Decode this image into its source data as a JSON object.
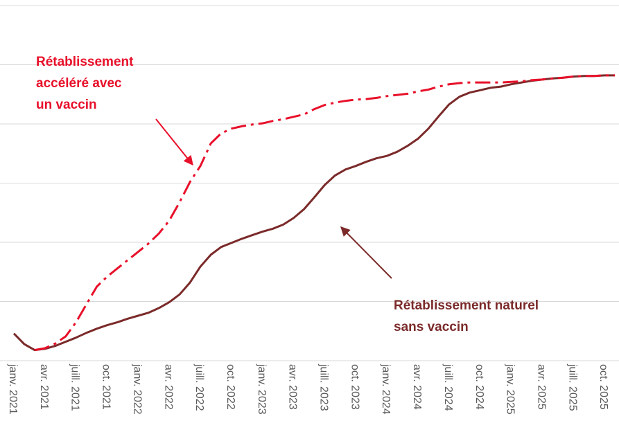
{
  "chart_data": {
    "type": "line",
    "categories": [
      "janv. 2021",
      null,
      null,
      "avr. 2021",
      null,
      null,
      "juill. 2021",
      null,
      null,
      "oct. 2021",
      null,
      null,
      "janv. 2022",
      null,
      null,
      "avr. 2022",
      null,
      null,
      "juill. 2022",
      null,
      null,
      "oct. 2022",
      null,
      null,
      "janv. 2023",
      null,
      null,
      "avr. 2023",
      null,
      null,
      "juill. 2023",
      null,
      null,
      "oct. 2023",
      null,
      null,
      "janv. 2024",
      null,
      null,
      "avr. 2024",
      null,
      null,
      "juill. 2024",
      null,
      null,
      "oct. 2024",
      null,
      null,
      "janv. 2025",
      null,
      null,
      "avr. 2025",
      null,
      null,
      "juill. 2025",
      null,
      null,
      "oct. 2025",
      null
    ],
    "series": [
      {
        "name": "Rétablissement naturel sans vaccin",
        "color": "#7b2a2a",
        "dash": "solid",
        "values": [
          0.46,
          0.28,
          0.18,
          0.2,
          0.25,
          0.32,
          0.39,
          0.47,
          0.54,
          0.6,
          0.65,
          0.71,
          0.76,
          0.81,
          0.89,
          0.99,
          1.12,
          1.32,
          1.59,
          1.79,
          1.92,
          1.99,
          2.06,
          2.12,
          2.18,
          2.23,
          2.3,
          2.41,
          2.56,
          2.76,
          2.97,
          3.13,
          3.23,
          3.29,
          3.36,
          3.42,
          3.46,
          3.53,
          3.63,
          3.75,
          3.92,
          4.13,
          4.33,
          4.46,
          4.53,
          4.57,
          4.61,
          4.63,
          4.67,
          4.7,
          4.73,
          4.75,
          4.77,
          4.78,
          4.8,
          4.81,
          4.81,
          4.82,
          4.82
        ]
      },
      {
        "name": "Rétablissement accéléré avec un vaccin",
        "color": "#e8102a",
        "dash": "dashdot",
        "values": [
          null,
          null,
          0.18,
          0.21,
          0.29,
          0.41,
          0.65,
          0.95,
          1.25,
          1.42,
          1.56,
          1.7,
          1.84,
          1.98,
          2.15,
          2.37,
          2.68,
          3.02,
          3.29,
          3.67,
          3.84,
          3.92,
          3.96,
          3.99,
          4.01,
          4.05,
          4.08,
          4.12,
          4.16,
          4.25,
          4.32,
          4.36,
          4.39,
          4.41,
          4.42,
          4.44,
          4.47,
          4.49,
          4.51,
          4.55,
          4.58,
          4.63,
          4.67,
          4.69,
          4.7,
          4.7,
          4.7,
          4.7,
          4.71,
          4.72,
          4.74,
          4.75,
          4.77,
          4.78,
          4.8,
          4.81,
          4.81,
          4.82,
          4.82
        ]
      }
    ],
    "annotations": [
      {
        "lines": [
          "Rétablissement",
          "accéléré avec",
          "un vaccin"
        ],
        "color": "#e8102a"
      },
      {
        "lines": [
          "Rétablissement naturel",
          "sans vaccin"
        ],
        "color": "#7b2a2a"
      }
    ],
    "ylim": [
      0,
      6
    ],
    "yticks": [
      0,
      1,
      2,
      3,
      4,
      5,
      6
    ],
    "grid": true
  }
}
